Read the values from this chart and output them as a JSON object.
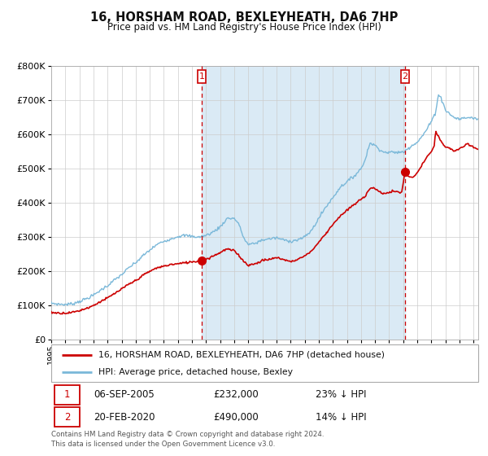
{
  "title": "16, HORSHAM ROAD, BEXLEYHEATH, DA6 7HP",
  "subtitle": "Price paid vs. HM Land Registry's House Price Index (HPI)",
  "legend_line1": "16, HORSHAM ROAD, BEXLEYHEATH, DA6 7HP (detached house)",
  "legend_line2": "HPI: Average price, detached house, Bexley",
  "annotation1_date": "06-SEP-2005",
  "annotation1_price": "£232,000",
  "annotation1_pct": "23% ↓ HPI",
  "annotation2_date": "20-FEB-2020",
  "annotation2_price": "£490,000",
  "annotation2_pct": "14% ↓ HPI",
  "footer": "Contains HM Land Registry data © Crown copyright and database right 2024.\nThis data is licensed under the Open Government Licence v3.0.",
  "hpi_color": "#7ab8d9",
  "price_color": "#cc0000",
  "vline_color": "#cc0000",
  "bg_shaded_color": "#daeaf5",
  "grid_color": "#cccccc",
  "annotation_box_color": "#cc0000",
  "ylim": [
    0,
    800000
  ],
  "yticks": [
    0,
    100000,
    200000,
    300000,
    400000,
    500000,
    600000,
    700000,
    800000
  ],
  "xlim_start": 1995.0,
  "xlim_end": 2025.33,
  "sale1_x": 2005.68,
  "sale1_y": 232000,
  "sale2_x": 2020.12,
  "sale2_y": 490000,
  "hpi_anchors": [
    [
      1995.0,
      107000
    ],
    [
      1995.5,
      104000
    ],
    [
      1996.0,
      103000
    ],
    [
      1996.5,
      105000
    ],
    [
      1997.0,
      112000
    ],
    [
      1997.5,
      120000
    ],
    [
      1998.0,
      130000
    ],
    [
      1998.5,
      145000
    ],
    [
      1999.0,
      158000
    ],
    [
      1999.5,
      175000
    ],
    [
      2000.0,
      190000
    ],
    [
      2000.5,
      210000
    ],
    [
      2001.0,
      225000
    ],
    [
      2001.5,
      245000
    ],
    [
      2002.0,
      262000
    ],
    [
      2002.5,
      278000
    ],
    [
      2003.0,
      288000
    ],
    [
      2003.5,
      295000
    ],
    [
      2004.0,
      302000
    ],
    [
      2004.5,
      305000
    ],
    [
      2005.0,
      302000
    ],
    [
      2005.5,
      300000
    ],
    [
      2006.0,
      305000
    ],
    [
      2006.5,
      315000
    ],
    [
      2007.0,
      330000
    ],
    [
      2007.5,
      355000
    ],
    [
      2008.0,
      355000
    ],
    [
      2008.3,
      340000
    ],
    [
      2008.7,
      295000
    ],
    [
      2009.0,
      278000
    ],
    [
      2009.5,
      282000
    ],
    [
      2010.0,
      292000
    ],
    [
      2010.5,
      295000
    ],
    [
      2011.0,
      298000
    ],
    [
      2011.5,
      292000
    ],
    [
      2012.0,
      288000
    ],
    [
      2012.5,
      292000
    ],
    [
      2013.0,
      300000
    ],
    [
      2013.5,
      320000
    ],
    [
      2014.0,
      355000
    ],
    [
      2014.5,
      388000
    ],
    [
      2015.0,
      415000
    ],
    [
      2015.5,
      445000
    ],
    [
      2016.0,
      462000
    ],
    [
      2016.5,
      478000
    ],
    [
      2017.0,
      500000
    ],
    [
      2017.3,
      525000
    ],
    [
      2017.5,
      560000
    ],
    [
      2017.7,
      575000
    ],
    [
      2018.0,
      568000
    ],
    [
      2018.3,
      558000
    ],
    [
      2018.6,
      548000
    ],
    [
      2019.0,
      548000
    ],
    [
      2019.5,
      548000
    ],
    [
      2020.0,
      548000
    ],
    [
      2020.3,
      558000
    ],
    [
      2020.6,
      568000
    ],
    [
      2021.0,
      578000
    ],
    [
      2021.3,
      592000
    ],
    [
      2021.6,
      610000
    ],
    [
      2022.0,
      638000
    ],
    [
      2022.3,
      665000
    ],
    [
      2022.5,
      718000
    ],
    [
      2022.7,
      705000
    ],
    [
      2022.9,
      685000
    ],
    [
      2023.0,
      672000
    ],
    [
      2023.3,
      660000
    ],
    [
      2023.6,
      650000
    ],
    [
      2024.0,
      645000
    ],
    [
      2024.3,
      648000
    ],
    [
      2024.6,
      650000
    ],
    [
      2025.0,
      648000
    ],
    [
      2025.3,
      645000
    ]
  ],
  "red_anchors": [
    [
      1995.0,
      80000
    ],
    [
      1995.5,
      78000
    ],
    [
      1996.0,
      78000
    ],
    [
      1996.5,
      80000
    ],
    [
      1997.0,
      85000
    ],
    [
      1997.5,
      92000
    ],
    [
      1998.0,
      100000
    ],
    [
      1998.5,
      112000
    ],
    [
      1999.0,
      122000
    ],
    [
      1999.5,
      135000
    ],
    [
      2000.0,
      148000
    ],
    [
      2000.5,
      162000
    ],
    [
      2001.0,
      173000
    ],
    [
      2001.5,
      188000
    ],
    [
      2002.0,
      200000
    ],
    [
      2002.5,
      210000
    ],
    [
      2003.0,
      215000
    ],
    [
      2003.5,
      220000
    ],
    [
      2004.0,
      222000
    ],
    [
      2004.5,
      225000
    ],
    [
      2005.0,
      228000
    ],
    [
      2005.5,
      230000
    ],
    [
      2005.68,
      232000
    ],
    [
      2006.0,
      235000
    ],
    [
      2006.5,
      245000
    ],
    [
      2007.0,
      255000
    ],
    [
      2007.3,
      262000
    ],
    [
      2007.5,
      265000
    ],
    [
      2008.0,
      260000
    ],
    [
      2008.3,
      248000
    ],
    [
      2008.7,
      228000
    ],
    [
      2009.0,
      218000
    ],
    [
      2009.5,
      222000
    ],
    [
      2010.0,
      232000
    ],
    [
      2010.5,
      235000
    ],
    [
      2011.0,
      240000
    ],
    [
      2011.5,
      235000
    ],
    [
      2012.0,
      228000
    ],
    [
      2012.5,
      235000
    ],
    [
      2013.0,
      245000
    ],
    [
      2013.5,
      260000
    ],
    [
      2014.0,
      285000
    ],
    [
      2014.5,
      310000
    ],
    [
      2015.0,
      338000
    ],
    [
      2015.5,
      360000
    ],
    [
      2016.0,
      378000
    ],
    [
      2016.5,
      395000
    ],
    [
      2017.0,
      410000
    ],
    [
      2017.3,
      420000
    ],
    [
      2017.5,
      435000
    ],
    [
      2017.7,
      445000
    ],
    [
      2018.0,
      442000
    ],
    [
      2018.3,
      432000
    ],
    [
      2018.6,
      428000
    ],
    [
      2019.0,
      430000
    ],
    [
      2019.3,
      435000
    ],
    [
      2019.6,
      432000
    ],
    [
      2019.9,
      430000
    ],
    [
      2020.12,
      490000
    ],
    [
      2020.3,
      480000
    ],
    [
      2020.6,
      472000
    ],
    [
      2021.0,
      488000
    ],
    [
      2021.3,
      508000
    ],
    [
      2021.6,
      530000
    ],
    [
      2022.0,
      548000
    ],
    [
      2022.2,
      568000
    ],
    [
      2022.3,
      608000
    ],
    [
      2022.5,
      595000
    ],
    [
      2022.7,
      578000
    ],
    [
      2022.9,
      568000
    ],
    [
      2023.0,
      562000
    ],
    [
      2023.3,
      560000
    ],
    [
      2023.6,
      552000
    ],
    [
      2024.0,
      558000
    ],
    [
      2024.3,
      565000
    ],
    [
      2024.6,
      572000
    ],
    [
      2025.0,
      562000
    ],
    [
      2025.3,
      558000
    ]
  ]
}
